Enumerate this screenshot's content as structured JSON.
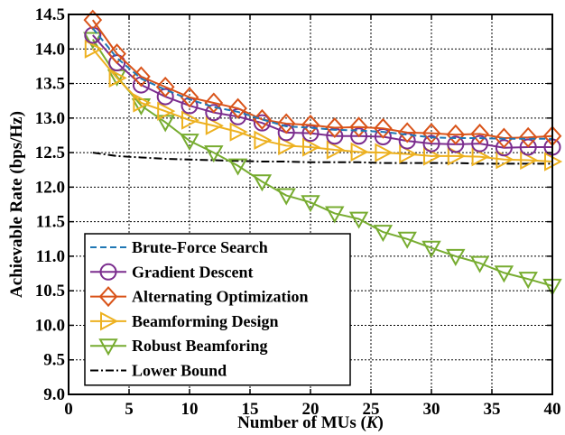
{
  "chart_data": {
    "type": "line",
    "xlabel": "Number of MUs (",
    "xlabel_var": "K",
    "xlabel_end": ")",
    "ylabel": "Achievable Rate (bps/Hz)",
    "xlim": [
      0,
      40
    ],
    "ylim": [
      9.0,
      14.5
    ],
    "xticks": [
      0,
      5,
      10,
      15,
      20,
      25,
      30,
      35,
      40
    ],
    "yticks": [
      9.0,
      9.5,
      10.0,
      10.5,
      11.0,
      11.5,
      12.0,
      12.5,
      13.0,
      13.5,
      14.0,
      14.5
    ],
    "xtick_labels": [
      "0",
      "5",
      "10",
      "15",
      "20",
      "25",
      "30",
      "35",
      "40"
    ],
    "ytick_labels": [
      "9.0",
      "9.5",
      "10.0",
      "10.5",
      "11.0",
      "11.5",
      "12.0",
      "12.5",
      "13.0",
      "13.5",
      "14.0",
      "14.5"
    ],
    "grid": true,
    "legend_position": "bottom-left",
    "x": [
      2,
      4,
      6,
      8,
      10,
      12,
      14,
      16,
      18,
      20,
      22,
      24,
      26,
      28,
      30,
      32,
      34,
      36,
      38,
      40
    ],
    "series": [
      {
        "name": "Brute-Force Search",
        "color": "#1f77b4",
        "line": "dashed",
        "marker": "none",
        "values": [
          14.3,
          13.87,
          13.57,
          13.41,
          13.27,
          13.16,
          13.09,
          12.98,
          12.88,
          12.86,
          12.83,
          12.82,
          12.8,
          12.76,
          12.72,
          12.71,
          12.71,
          12.7,
          12.7,
          12.7
        ]
      },
      {
        "name": "Gradient Descent",
        "color": "#7b2d8e",
        "line": "solid",
        "marker": "circle",
        "values": [
          14.2,
          13.8,
          13.48,
          13.31,
          13.18,
          13.08,
          13.02,
          12.93,
          12.79,
          12.78,
          12.74,
          12.74,
          12.73,
          12.67,
          12.63,
          12.62,
          12.63,
          12.57,
          12.58,
          12.58
        ]
      },
      {
        "name": "Alternating Optimization",
        "color": "#d95319",
        "line": "solid",
        "marker": "diamond",
        "values": [
          14.42,
          13.93,
          13.6,
          13.45,
          13.3,
          13.22,
          13.14,
          12.98,
          12.92,
          12.9,
          12.86,
          12.87,
          12.85,
          12.79,
          12.78,
          12.76,
          12.77,
          12.71,
          12.72,
          12.74
        ]
      },
      {
        "name": "Beamforming Design",
        "color": "#edb120",
        "line": "solid",
        "marker": "triangle-right",
        "values": [
          14.0,
          13.58,
          13.22,
          13.1,
          12.97,
          12.89,
          12.8,
          12.68,
          12.6,
          12.58,
          12.54,
          12.51,
          12.5,
          12.48,
          12.45,
          12.45,
          12.44,
          12.4,
          12.39,
          12.37
        ]
      },
      {
        "name": "Robust Beamforing",
        "color": "#77ac30",
        "line": "solid",
        "marker": "triangle-down",
        "values": [
          14.14,
          13.6,
          13.18,
          12.94,
          12.67,
          12.5,
          12.31,
          12.08,
          11.88,
          11.78,
          11.62,
          11.54,
          11.35,
          11.25,
          11.12,
          11.0,
          10.9,
          10.76,
          10.67,
          10.57
        ]
      },
      {
        "name": "Lower Bound",
        "color": "#000000",
        "line": "dashdot",
        "marker": "none",
        "values": [
          12.5,
          12.45,
          12.43,
          12.41,
          12.4,
          12.39,
          12.38,
          12.37,
          12.37,
          12.36,
          12.36,
          12.36,
          12.35,
          12.35,
          12.35,
          12.35,
          12.34,
          12.34,
          12.34,
          12.34
        ]
      }
    ]
  }
}
